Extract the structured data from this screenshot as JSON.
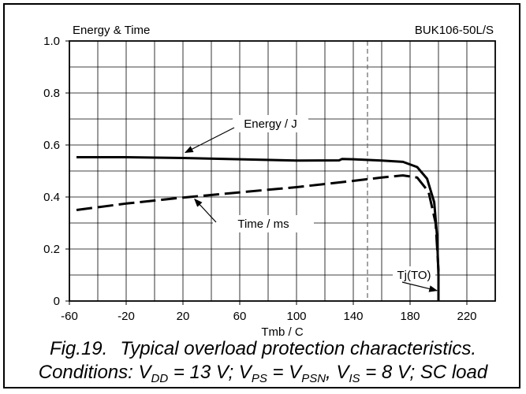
{
  "chart_data": {
    "type": "line",
    "title": "Energy & Time",
    "part_number": "BUK106-50L/S",
    "xlabel": "Tmb / C",
    "ylabel": "",
    "xlim": [
      -60,
      240
    ],
    "ylim": [
      0,
      1.0
    ],
    "x_ticks": [
      -60,
      -20,
      20,
      60,
      100,
      140,
      180,
      220
    ],
    "y_ticks": [
      0,
      0.2,
      0.4,
      0.6,
      0.8,
      1.0
    ],
    "y_tick_labels": [
      "0",
      "0.2",
      "0.4",
      "0.6",
      "0.8",
      "1.0"
    ],
    "grid": true,
    "reference_line_x": 150,
    "series": [
      {
        "name": "Energy / J",
        "style": "solid",
        "x": [
          -55,
          -20,
          20,
          60,
          100,
          130,
          132,
          140,
          160,
          175,
          185,
          192,
          197,
          199,
          200,
          200
        ],
        "y": [
          0.553,
          0.553,
          0.55,
          0.545,
          0.54,
          0.541,
          0.546,
          0.545,
          0.54,
          0.535,
          0.515,
          0.47,
          0.38,
          0.25,
          0.1,
          0.0
        ]
      },
      {
        "name": "Time / ms",
        "style": "dashed",
        "x": [
          -55,
          -20,
          20,
          60,
          100,
          140,
          160,
          175,
          185,
          193,
          198,
          200,
          200
        ],
        "y": [
          0.35,
          0.375,
          0.398,
          0.418,
          0.438,
          0.462,
          0.475,
          0.483,
          0.475,
          0.42,
          0.3,
          0.12,
          0.0
        ]
      }
    ],
    "annotations": [
      {
        "text": "Energy / J",
        "target_x": 20,
        "target_y": 0.58
      },
      {
        "text": "Time / ms",
        "target_x": 26,
        "target_y": 0.398
      },
      {
        "text": "Tj(TO)",
        "target_x": 200,
        "target_y": 0.03
      }
    ]
  },
  "caption": {
    "fig_num": "Fig.19.",
    "line1": "Typical overload protection characteristics.",
    "conditions_prefix": "Conditions: V",
    "vdd_sub": "DD",
    "vdd_val": " = 13 V; V",
    "vps_sub": "PS",
    "vps_eq": " = V",
    "vpsn_sub": "PSN",
    "vpsn_val": ", V",
    "vis_sub": "IS",
    "vis_val": " = 8 V; SC load"
  }
}
